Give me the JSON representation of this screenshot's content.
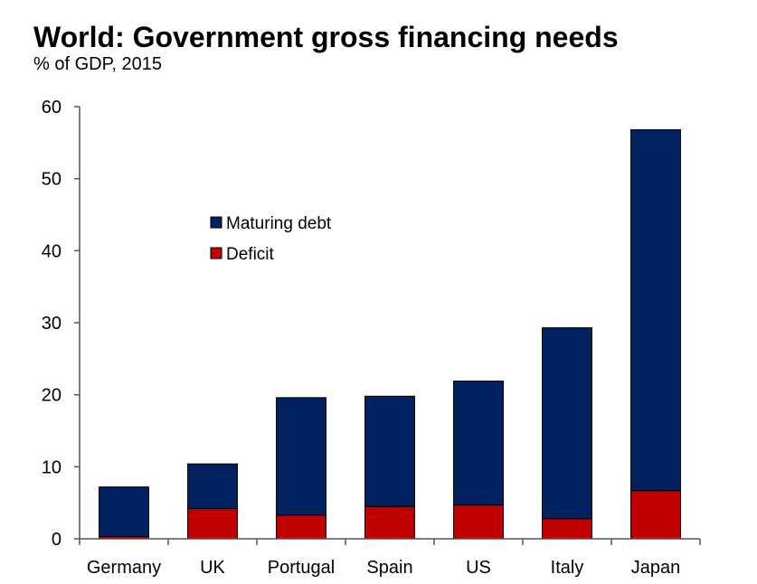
{
  "chart_data": {
    "type": "bar",
    "stacked": true,
    "title": "World: Government gross financing needs",
    "subtitle": "% of GDP, 2015",
    "xlabel": "",
    "ylabel": "",
    "categories": [
      "Germany",
      "UK",
      "Portugal",
      "Spain",
      "US",
      "Italy",
      "Japan"
    ],
    "series": [
      {
        "name": "Deficit",
        "color": "#C00000",
        "values": [
          0.3,
          4.2,
          3.3,
          4.5,
          4.7,
          2.8,
          6.7
        ]
      },
      {
        "name": "Maturing debt",
        "color": "#002060",
        "values": [
          6.9,
          6.2,
          16.3,
          15.3,
          17.2,
          26.5,
          50.1
        ]
      }
    ],
    "totals": [
      7.2,
      10.4,
      19.6,
      19.8,
      21.9,
      29.3,
      56.8
    ],
    "ylim": [
      0,
      60
    ],
    "yticks": [
      0,
      10,
      20,
      30,
      40,
      50,
      60
    ],
    "grid": false,
    "legend": {
      "placement": "upper-left-inside",
      "entries": [
        {
          "label": "Maturing debt",
          "color": "#002060"
        },
        {
          "label": "Deficit",
          "color": "#C00000"
        }
      ]
    }
  }
}
